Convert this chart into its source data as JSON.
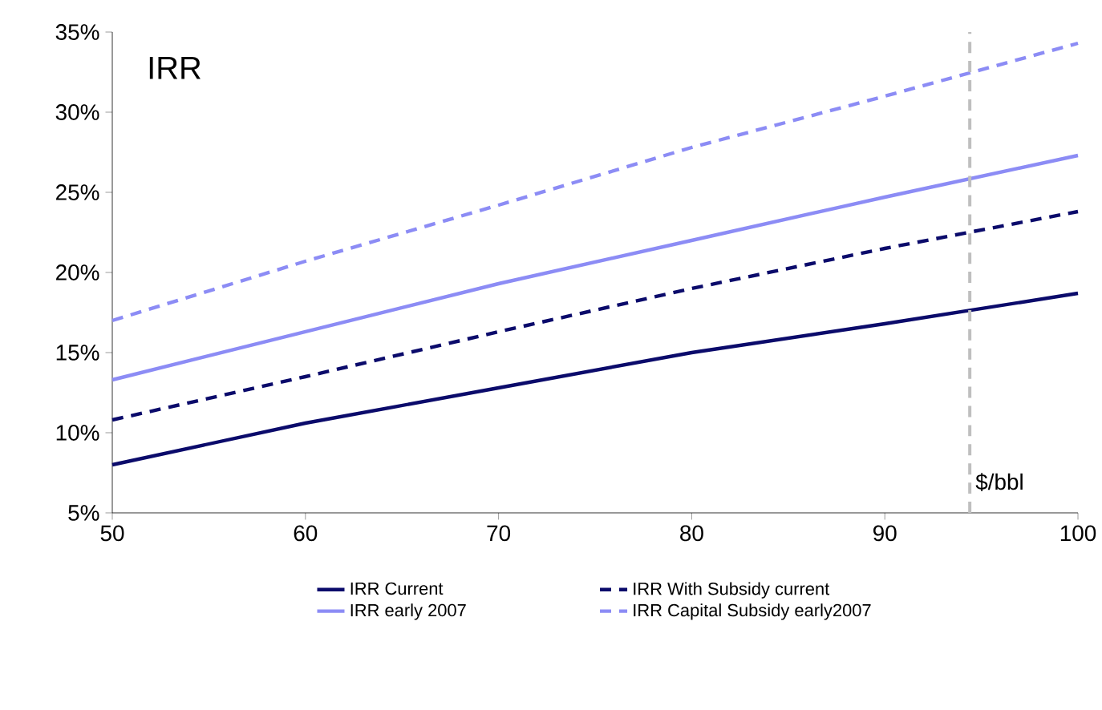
{
  "chart_data": {
    "type": "line",
    "title": "IRR",
    "x": [
      50,
      60,
      70,
      80,
      90,
      100
    ],
    "series": [
      {
        "name": "IRR Current",
        "color": "#0b0b6b",
        "line_style": "solid",
        "values": [
          8.0,
          10.6,
          12.8,
          15.0,
          16.8,
          18.7
        ]
      },
      {
        "name": "IRR With Subsidy current",
        "color": "#0b0b6b",
        "line_style": "dashed",
        "values": [
          10.8,
          13.5,
          16.3,
          19.0,
          21.5,
          23.8
        ]
      },
      {
        "name": "IRR early 2007",
        "color": "#8c8cf5",
        "line_style": "solid",
        "values": [
          13.3,
          16.3,
          19.3,
          22.0,
          24.7,
          27.3
        ]
      },
      {
        "name": "IRR Capital Subsidy early2007",
        "color": "#8c8cf5",
        "line_style": "dashed",
        "values": [
          17.0,
          20.7,
          24.2,
          27.8,
          31.0,
          34.3
        ]
      }
    ],
    "xlim": [
      50,
      100
    ],
    "xticks": [
      50,
      60,
      70,
      80,
      90,
      100
    ],
    "ylim": [
      5,
      35
    ],
    "yticks": [
      {
        "value": 5,
        "label": "5%"
      },
      {
        "value": 10,
        "label": "10%"
      },
      {
        "value": 15,
        "label": "15%"
      },
      {
        "value": 20,
        "label": "20%"
      },
      {
        "value": 25,
        "label": "25%"
      },
      {
        "value": 30,
        "label": "30%"
      },
      {
        "value": 35,
        "label": "35%"
      }
    ],
    "ref_lines": [
      {
        "axis": "x",
        "value": 94.4,
        "label": "$/bbl",
        "color": "#bfbfbf",
        "line_style": "dashed"
      }
    ],
    "grid": false,
    "legend": "bottom",
    "marker": "none"
  }
}
